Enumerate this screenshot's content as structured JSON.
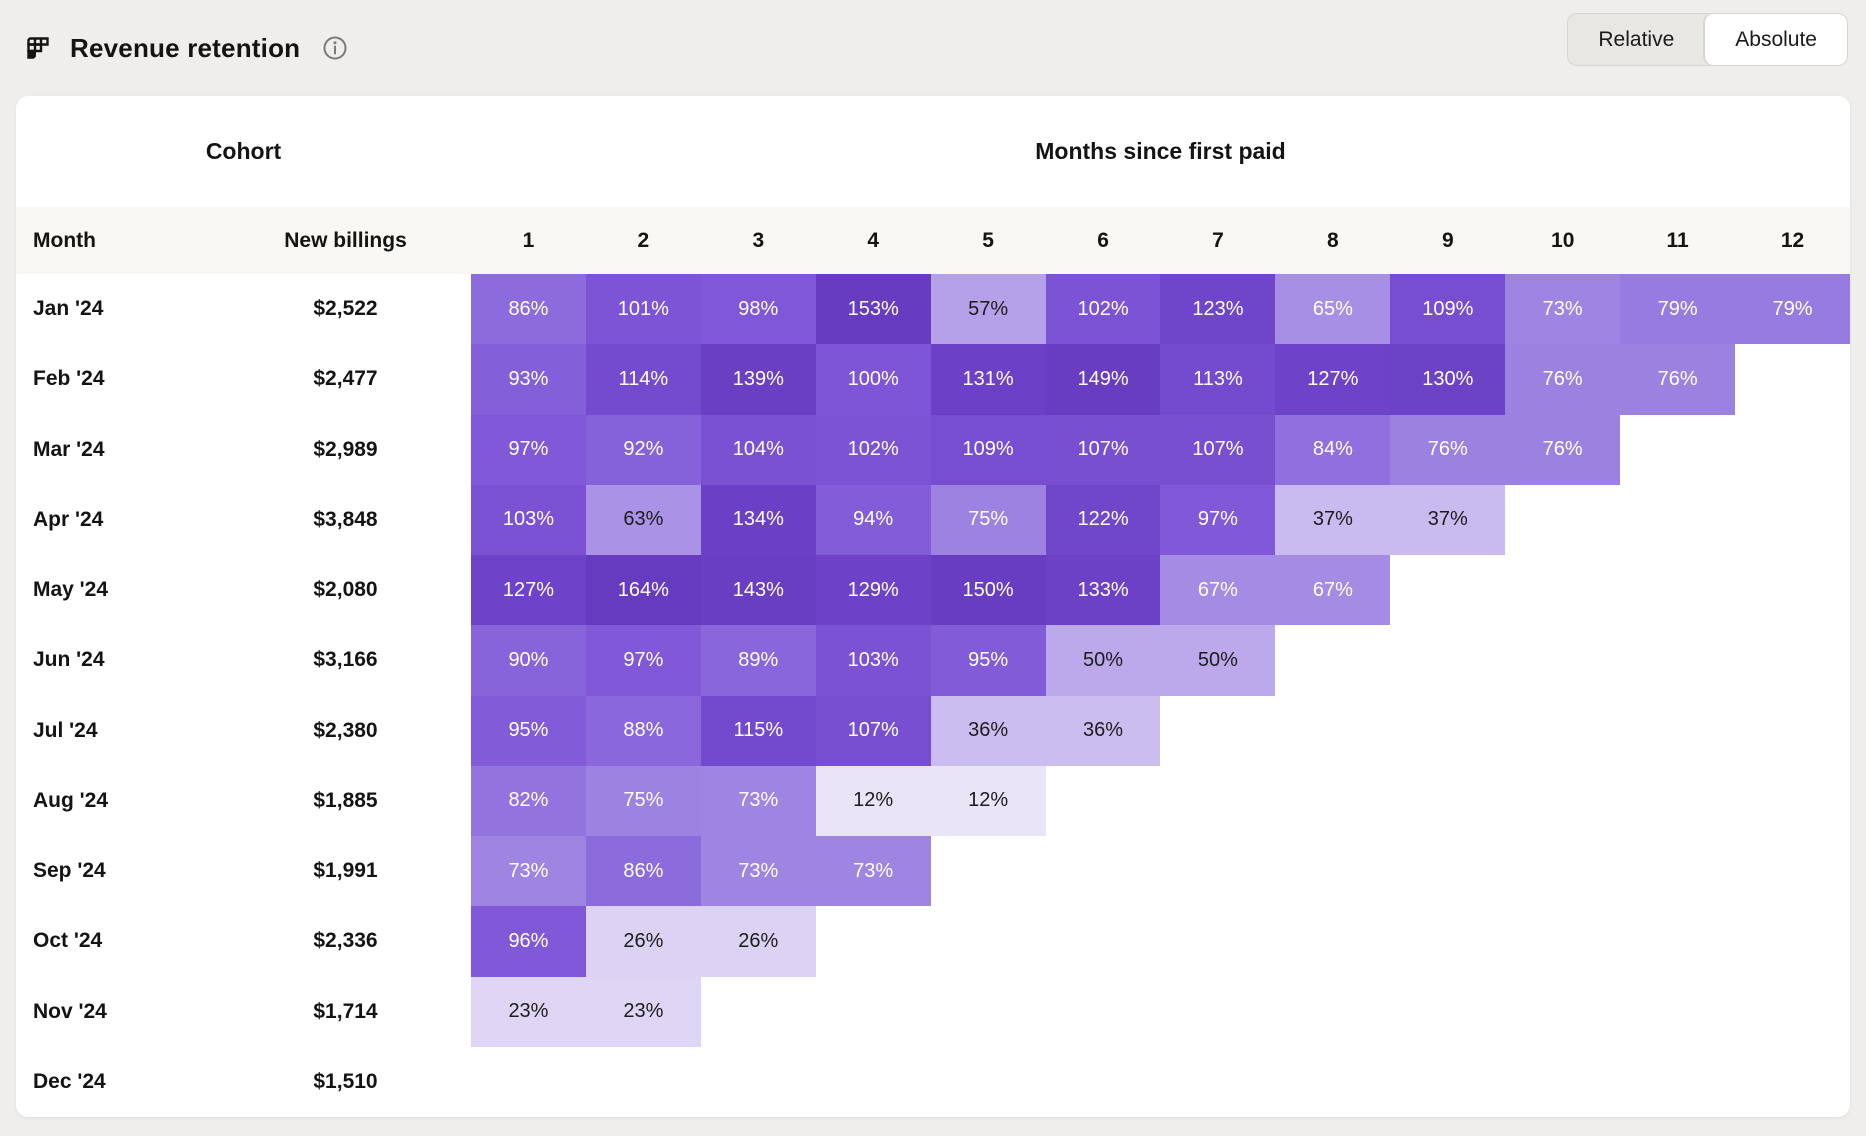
{
  "header": {
    "title": "Revenue retention",
    "toggle": {
      "options": [
        "Relative",
        "Absolute"
      ],
      "selected": "Absolute"
    }
  },
  "table": {
    "group_headers": {
      "cohort": "Cohort",
      "months": "Months since first paid"
    },
    "columns": {
      "month": "Month",
      "new_billings": "New billings",
      "month_numbers": [
        "1",
        "2",
        "3",
        "4",
        "5",
        "6",
        "7",
        "8",
        "9",
        "10",
        "11",
        "12"
      ]
    },
    "rows": [
      {
        "month": "Jan '24",
        "new_billings": "$2,522",
        "retention": [
          86,
          101,
          98,
          153,
          57,
          102,
          123,
          65,
          109,
          73,
          79,
          79
        ]
      },
      {
        "month": "Feb '24",
        "new_billings": "$2,477",
        "retention": [
          93,
          114,
          139,
          100,
          131,
          149,
          113,
          127,
          130,
          76,
          76
        ]
      },
      {
        "month": "Mar '24",
        "new_billings": "$2,989",
        "retention": [
          97,
          92,
          104,
          102,
          109,
          107,
          107,
          84,
          76,
          76
        ]
      },
      {
        "month": "Apr '24",
        "new_billings": "$3,848",
        "retention": [
          103,
          63,
          134,
          94,
          75,
          122,
          97,
          37,
          37
        ]
      },
      {
        "month": "May '24",
        "new_billings": "$2,080",
        "retention": [
          127,
          164,
          143,
          129,
          150,
          133,
          67,
          67
        ]
      },
      {
        "month": "Jun '24",
        "new_billings": "$3,166",
        "retention": [
          90,
          97,
          89,
          103,
          95,
          50,
          50
        ]
      },
      {
        "month": "Jul '24",
        "new_billings": "$2,380",
        "retention": [
          95,
          88,
          115,
          107,
          36,
          36
        ]
      },
      {
        "month": "Aug '24",
        "new_billings": "$1,885",
        "retention": [
          82,
          75,
          73,
          12,
          12
        ]
      },
      {
        "month": "Sep '24",
        "new_billings": "$1,991",
        "retention": [
          73,
          86,
          73,
          73
        ]
      },
      {
        "month": "Oct '24",
        "new_billings": "$2,336",
        "retention": [
          96,
          26,
          26
        ]
      },
      {
        "month": "Nov '24",
        "new_billings": "$1,714",
        "retention": [
          23,
          23
        ]
      },
      {
        "month": "Dec '24",
        "new_billings": "$1,510",
        "retention": []
      }
    ]
  },
  "chart_data": {
    "type": "heatmap",
    "title": "Revenue retention",
    "xlabel": "Months since first paid",
    "ylabel": "Cohort month",
    "x": [
      1,
      2,
      3,
      4,
      5,
      6,
      7,
      8,
      9,
      10,
      11,
      12
    ],
    "categories": [
      "Jan '24",
      "Feb '24",
      "Mar '24",
      "Apr '24",
      "May '24",
      "Jun '24",
      "Jul '24",
      "Aug '24",
      "Sep '24",
      "Oct '24",
      "Nov '24",
      "Dec '24"
    ],
    "new_billings": [
      "$2,522",
      "$2,477",
      "$2,989",
      "$3,848",
      "$2,080",
      "$3,166",
      "$2,380",
      "$1,885",
      "$1,991",
      "$2,336",
      "$1,714",
      "$1,510"
    ],
    "values_pct": [
      [
        86,
        101,
        98,
        153,
        57,
        102,
        123,
        65,
        109,
        73,
        79,
        79
      ],
      [
        93,
        114,
        139,
        100,
        131,
        149,
        113,
        127,
        130,
        76,
        76
      ],
      [
        97,
        92,
        104,
        102,
        109,
        107,
        107,
        84,
        76,
        76
      ],
      [
        103,
        63,
        134,
        94,
        75,
        122,
        97,
        37,
        37
      ],
      [
        127,
        164,
        143,
        129,
        150,
        133,
        67,
        67
      ],
      [
        90,
        97,
        89,
        103,
        95,
        50,
        50
      ],
      [
        95,
        88,
        115,
        107,
        36,
        36
      ],
      [
        82,
        75,
        73,
        12,
        12
      ],
      [
        73,
        86,
        73,
        73
      ],
      [
        96,
        26,
        26
      ],
      [
        23,
        23
      ],
      []
    ]
  },
  "heatmap": {
    "unit": "%",
    "dark_text_max": 63,
    "text_dark": "#1c1c1c",
    "text_light": "#ffffff",
    "color_stops": [
      [
        12,
        "#e9e4f8"
      ],
      [
        26,
        "#dcd2f4"
      ],
      [
        37,
        "#c9bbf0"
      ],
      [
        50,
        "#bba9ec"
      ],
      [
        57,
        "#b5a1e9"
      ],
      [
        63,
        "#aa92e7"
      ],
      [
        67,
        "#a58be4"
      ],
      [
        76,
        "#9d81e1"
      ],
      [
        86,
        "#8c6cdd"
      ],
      [
        96,
        "#8159d8"
      ],
      [
        103,
        "#7c52d5"
      ],
      [
        109,
        "#774dd1"
      ],
      [
        115,
        "#734ace"
      ],
      [
        123,
        "#6f45ca"
      ],
      [
        131,
        "#6c41c7"
      ],
      [
        143,
        "#6a3ec3"
      ],
      [
        153,
        "#683cc1"
      ],
      [
        164,
        "#673bc0"
      ]
    ]
  }
}
